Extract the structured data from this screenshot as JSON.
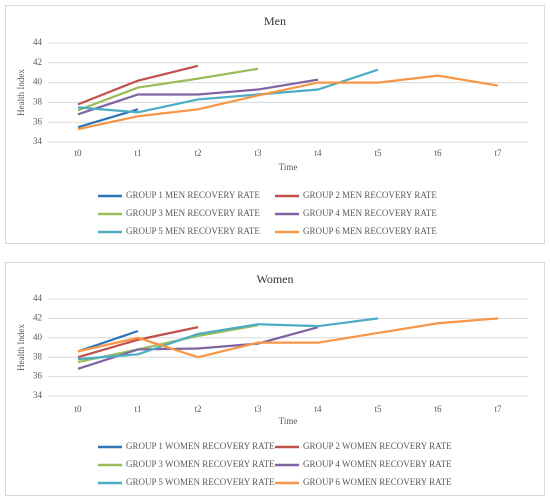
{
  "chart_data": [
    {
      "type": "line",
      "title": "Men",
      "x_label": "Time",
      "y_label": "Health Index",
      "categories": [
        "t0",
        "t1",
        "t2",
        "t3",
        "t4",
        "t5",
        "t6",
        "t7"
      ],
      "ylim": [
        34,
        44
      ],
      "yticks": [
        34,
        36,
        38,
        40,
        42,
        44
      ],
      "grid": true,
      "series": [
        {
          "name": "GROUP 1 MEN RECOVERY RATE",
          "color": "#2e75b6",
          "values": [
            35.5,
            37.3,
            null,
            null,
            null,
            null,
            null,
            null
          ]
        },
        {
          "name": "GROUP 2 MEN RECOVERY RATE",
          "color": "#c0504d",
          "values": [
            37.8,
            40.2,
            41.7,
            null,
            null,
            null,
            null,
            null
          ]
        },
        {
          "name": "GROUP 3 MEN RECOVERY RATE",
          "color": "#9bbb59",
          "values": [
            37.2,
            39.5,
            40.4,
            41.4,
            null,
            null,
            null,
            null
          ]
        },
        {
          "name": "GROUP 4 MEN RECOVERY RATE",
          "color": "#8064a2",
          "values": [
            36.8,
            38.8,
            38.8,
            39.3,
            40.3,
            null,
            null,
            null
          ]
        },
        {
          "name": "GROUP 5 MEN RECOVERY RATE",
          "color": "#4bacc6",
          "values": [
            37.5,
            37.0,
            38.3,
            38.8,
            39.3,
            41.3,
            null,
            null
          ]
        },
        {
          "name": "GROUP 6 MEN RECOVERY RATE",
          "color": "#f79646",
          "values": [
            35.3,
            36.6,
            37.3,
            38.7,
            40.0,
            40.0,
            40.7,
            39.7
          ]
        }
      ]
    },
    {
      "type": "line",
      "title": "Women",
      "x_label": "Time",
      "y_label": "Health Index",
      "categories": [
        "t0",
        "t1",
        "t2",
        "t3",
        "t4",
        "t5",
        "t6",
        "t7"
      ],
      "ylim": [
        34,
        44
      ],
      "yticks": [
        34,
        36,
        38,
        40,
        42,
        44
      ],
      "grid": true,
      "series": [
        {
          "name": "GROUP 1 WOMEN RECOVERY RATE",
          "color": "#2e75b6",
          "values": [
            38.6,
            40.7,
            null,
            null,
            null,
            null,
            null,
            null
          ]
        },
        {
          "name": "GROUP 2 WOMEN RECOVERY RATE",
          "color": "#c0504d",
          "values": [
            38.0,
            39.8,
            41.1,
            null,
            null,
            null,
            null,
            null
          ]
        },
        {
          "name": "GROUP 3 WOMEN RECOVERY RATE",
          "color": "#9bbb59",
          "values": [
            37.5,
            38.8,
            40.2,
            41.3,
            null,
            null,
            null,
            null
          ]
        },
        {
          "name": "GROUP 4 WOMEN RECOVERY RATE",
          "color": "#8064a2",
          "values": [
            36.8,
            38.8,
            38.9,
            39.4,
            41.1,
            null,
            null,
            null
          ]
        },
        {
          "name": "GROUP 5 WOMEN RECOVERY RATE",
          "color": "#4bacc6",
          "values": [
            37.8,
            38.3,
            40.4,
            41.4,
            41.2,
            42.0,
            null,
            null
          ]
        },
        {
          "name": "GROUP 6 WOMEN RECOVERY RATE",
          "color": "#f79646",
          "values": [
            38.6,
            40.0,
            38.0,
            39.5,
            39.5,
            40.5,
            41.5,
            42.0
          ]
        }
      ]
    }
  ]
}
